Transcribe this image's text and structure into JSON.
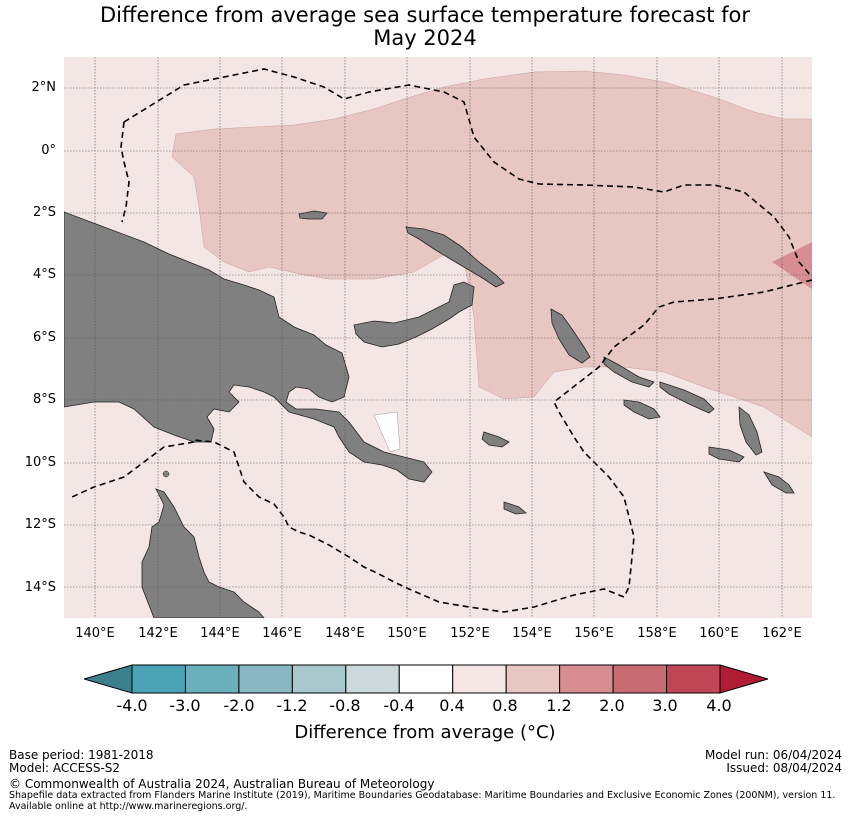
{
  "title_line1": "Difference from average sea surface temperature forecast for",
  "title_line2": "May 2024",
  "axes": {
    "lat_labels": [
      "2°N",
      "0°",
      "2°S",
      "4°S",
      "6°S",
      "8°S",
      "10°S",
      "12°S",
      "14°S"
    ],
    "lon_labels": [
      "140°E",
      "142°E",
      "144°E",
      "146°E",
      "148°E",
      "150°E",
      "152°E",
      "154°E",
      "156°E",
      "158°E",
      "160°E",
      "162°E"
    ],
    "lon_range": [
      139.0,
      163.0
    ],
    "lat_range": [
      3.0,
      -15.0
    ]
  },
  "colorbar": {
    "ticks": [
      "-4.0",
      "-3.0",
      "-2.0",
      "-1.2",
      "-0.8",
      "-0.4",
      "0.4",
      "0.8",
      "1.2",
      "2.0",
      "3.0",
      "4.0"
    ],
    "colors": [
      "#4aa3b4",
      "#6ab0bd",
      "#8ab8c3",
      "#a9c8cd",
      "#cbd9db",
      "#ffffff",
      "#f4e6e4",
      "#e8c6c1",
      "#d78d92",
      "#c86c74",
      "#c04656"
    ],
    "under_color": "#3b808c",
    "over_color": "#b01c34",
    "label": "Difference from average ($^\\circ$C)",
    "label_display": "Difference from average (°C)"
  },
  "colors": {
    "land": "#808080",
    "anom_04_08": "#f4e6e4",
    "anom_08_12": "#e8c6c1",
    "anom_12_20": "#d78d92"
  },
  "footer": {
    "base_period": "Base period: 1981-2018",
    "model": "Model: ACCESS-S2",
    "model_run": "Model run: 06/04/2024",
    "issued": "Issued: 08/04/2024",
    "copyright": "© Commonwealth of Australia 2024, Australian Bureau of Meteorology",
    "shapefile_line1": "Shapefile data extracted from Flanders Marine Institute (2019), Maritime Boundaries Geodatabase: Maritime Boundaries and Exclusive Economic Zones (200NM), version 11.",
    "shapefile_line2": "Available online at http://www.marineregions.org/."
  }
}
